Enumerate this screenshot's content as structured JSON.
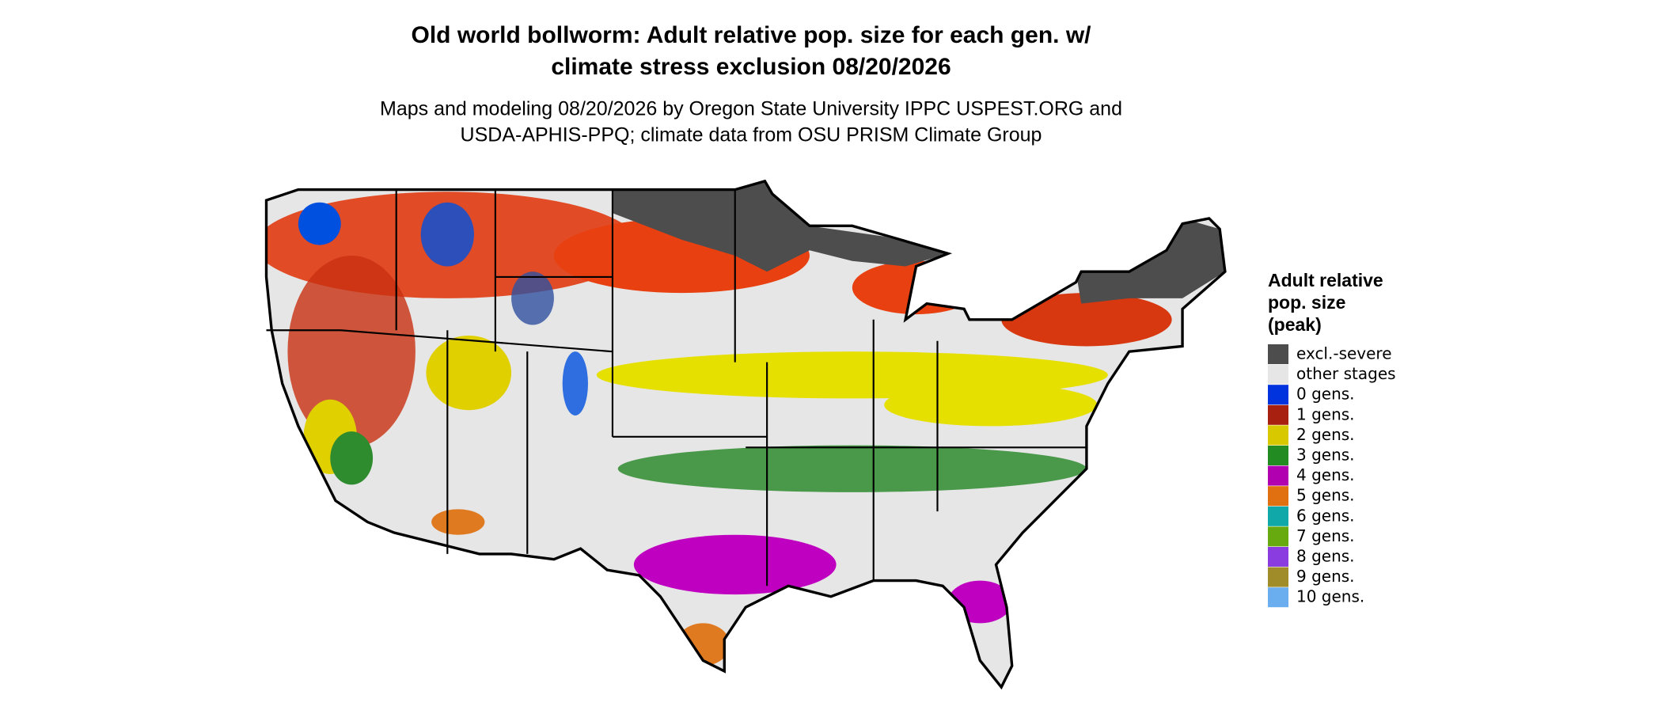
{
  "header": {
    "title": [
      "Old world bollworm: Adult relative pop. size for each gen. w/",
      "climate stress exclusion 08/20/2026"
    ],
    "subtitle": [
      "Maps and modeling 08/20/2026 by Oregon State University IPPC USPEST.ORG and",
      "USDA-APHIS-PPQ; climate data from OSU PRISM Climate Group"
    ]
  },
  "legend": {
    "title": [
      "Adult relative",
      "pop. size",
      "(peak)"
    ],
    "items": [
      {
        "label": "excl.-severe",
        "color": "#4d4d4d"
      },
      {
        "label": "other stages",
        "color": "#e6e6e6"
      },
      {
        "label": "0 gens.",
        "color": "#0033dd"
      },
      {
        "label": "1 gens.",
        "color": "#a82010"
      },
      {
        "label": "2 gens.",
        "color": "#d8c800"
      },
      {
        "label": "3 gens.",
        "color": "#228b22"
      },
      {
        "label": "4 gens.",
        "color": "#b000b0"
      },
      {
        "label": "5 gens.",
        "color": "#e07010"
      },
      {
        "label": "6 gens.",
        "color": "#10a8a8"
      },
      {
        "label": "7 gens.",
        "color": "#66aa10"
      },
      {
        "label": "8 gens.",
        "color": "#8a3ce0"
      },
      {
        "label": "9 gens.",
        "color": "#a08c28"
      },
      {
        "label": "10 gens.",
        "color": "#6aaef0"
      }
    ]
  }
}
